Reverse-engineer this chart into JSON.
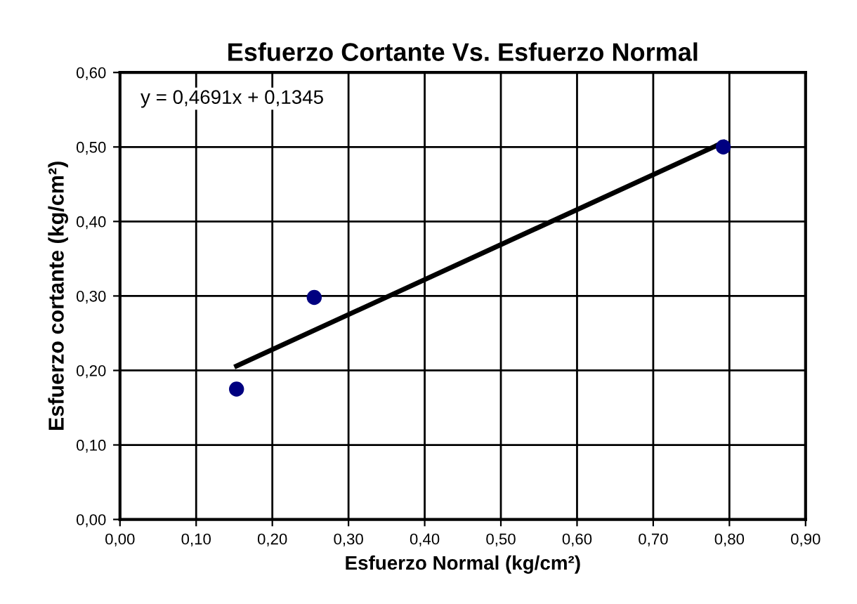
{
  "chart_data": {
    "type": "scatter",
    "title": "Esfuerzo Cortante Vs. Esfuerzo Normal",
    "xlabel": "Esfuerzo Normal (kg/cm²)",
    "ylabel": "Esfuerzo cortante (kg/cm²)",
    "annotations": [
      "y = 0,4691x + 0,1345"
    ],
    "series": [
      {
        "type": "scatter",
        "color": "#000080",
        "x": [
          0.153,
          0.255,
          0.792
        ],
        "values": [
          0.175,
          0.298,
          0.5
        ],
        "marker": "circle"
      },
      {
        "type": "line",
        "color": "#000000",
        "x": [
          0.153,
          0.792
        ],
        "values": [
          0.206,
          0.506
        ],
        "marker": "none"
      }
    ],
    "xlim": [
      0,
      0.9
    ],
    "ylim": [
      0,
      0.6
    ],
    "xticks": [
      {
        "value": 0,
        "label": "0,00"
      },
      {
        "value": 0.1,
        "label": "0,10"
      },
      {
        "value": 0.2,
        "label": "0,20"
      },
      {
        "value": 0.3,
        "label": "0,30"
      },
      {
        "value": 0.4,
        "label": "0,40"
      },
      {
        "value": 0.5,
        "label": "0,50"
      },
      {
        "value": 0.6,
        "label": "0,60"
      },
      {
        "value": 0.7,
        "label": "0,70"
      },
      {
        "value": 0.8,
        "label": "0,80"
      },
      {
        "value": 0.9,
        "label": "0,90"
      }
    ],
    "yticks": [
      {
        "value": 0,
        "label": "0,00"
      },
      {
        "value": 0.1,
        "label": "0,10"
      },
      {
        "value": 0.2,
        "label": "0,20"
      },
      {
        "value": 0.3,
        "label": "0,30"
      },
      {
        "value": 0.4,
        "label": "0,40"
      },
      {
        "value": 0.5,
        "label": "0,50"
      },
      {
        "value": 0.6,
        "label": "0,60"
      }
    ],
    "grid": true,
    "legend": false
  }
}
